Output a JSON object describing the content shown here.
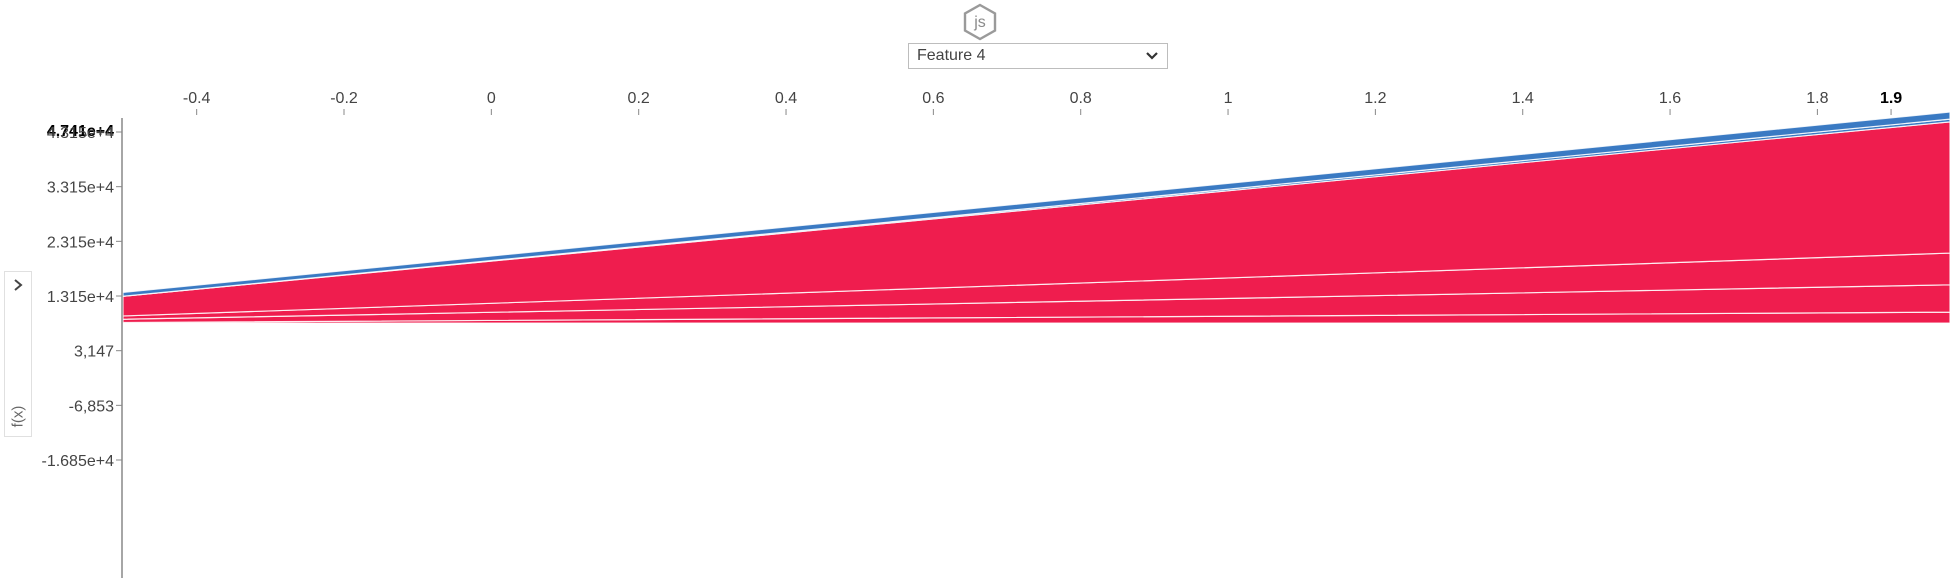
{
  "logo": {
    "text": "js"
  },
  "selector": {
    "value": "Feature 4"
  },
  "sidebar": {
    "label": "f(x)"
  },
  "colors": {
    "positive": "#ef1d4e",
    "negative": "#3a7ac3",
    "axis": "#888888"
  },
  "chart_data": {
    "type": "area",
    "x_ticks": [
      "-0.4",
      "-0.2",
      "0",
      "0.2",
      "0.4",
      "0.6",
      "0.8",
      "1",
      "1.2",
      "1.4",
      "1.6",
      "1.8",
      "1.9"
    ],
    "x_range": [
      -0.5,
      1.98
    ],
    "y_ticks": [
      "4.741e+4",
      "4.315e+4",
      "3.315e+4",
      "2.315e+4",
      "1.315e+4",
      "3,147",
      "-6,853",
      "-1.685e+4"
    ],
    "y_range": [
      -26000.0,
      48000.0
    ],
    "baseline": 8200,
    "top_value": "4.741e+4",
    "x_start": -0.5,
    "x_end": 1.98,
    "bands": [
      {
        "sign": "positive",
        "values_start": [
          8200,
          8300
        ],
        "values_end": [
          8200,
          10200.0
        ],
        "label": ""
      },
      {
        "sign": "positive",
        "values_start": [
          8300,
          8900
        ],
        "values_end": [
          10200.0,
          15200.0
        ],
        "label": ""
      },
      {
        "sign": "positive",
        "values_start": [
          8900,
          9500
        ],
        "values_end": [
          15200.0,
          21000.0
        ],
        "label": ""
      },
      {
        "sign": "positive",
        "values_start": [
          9500,
          13100.0
        ],
        "values_end": [
          21000.0,
          45000.0
        ],
        "label": ""
      },
      {
        "sign": "negative",
        "values_start": [
          13100.0,
          13100.0
        ],
        "values_end": [
          45000.0,
          45500.0
        ],
        "label": ""
      },
      {
        "sign": "negative",
        "values_start": [
          13100.0,
          13800.0
        ],
        "values_end": [
          45500.0,
          46800.0
        ],
        "label": ""
      }
    ]
  }
}
